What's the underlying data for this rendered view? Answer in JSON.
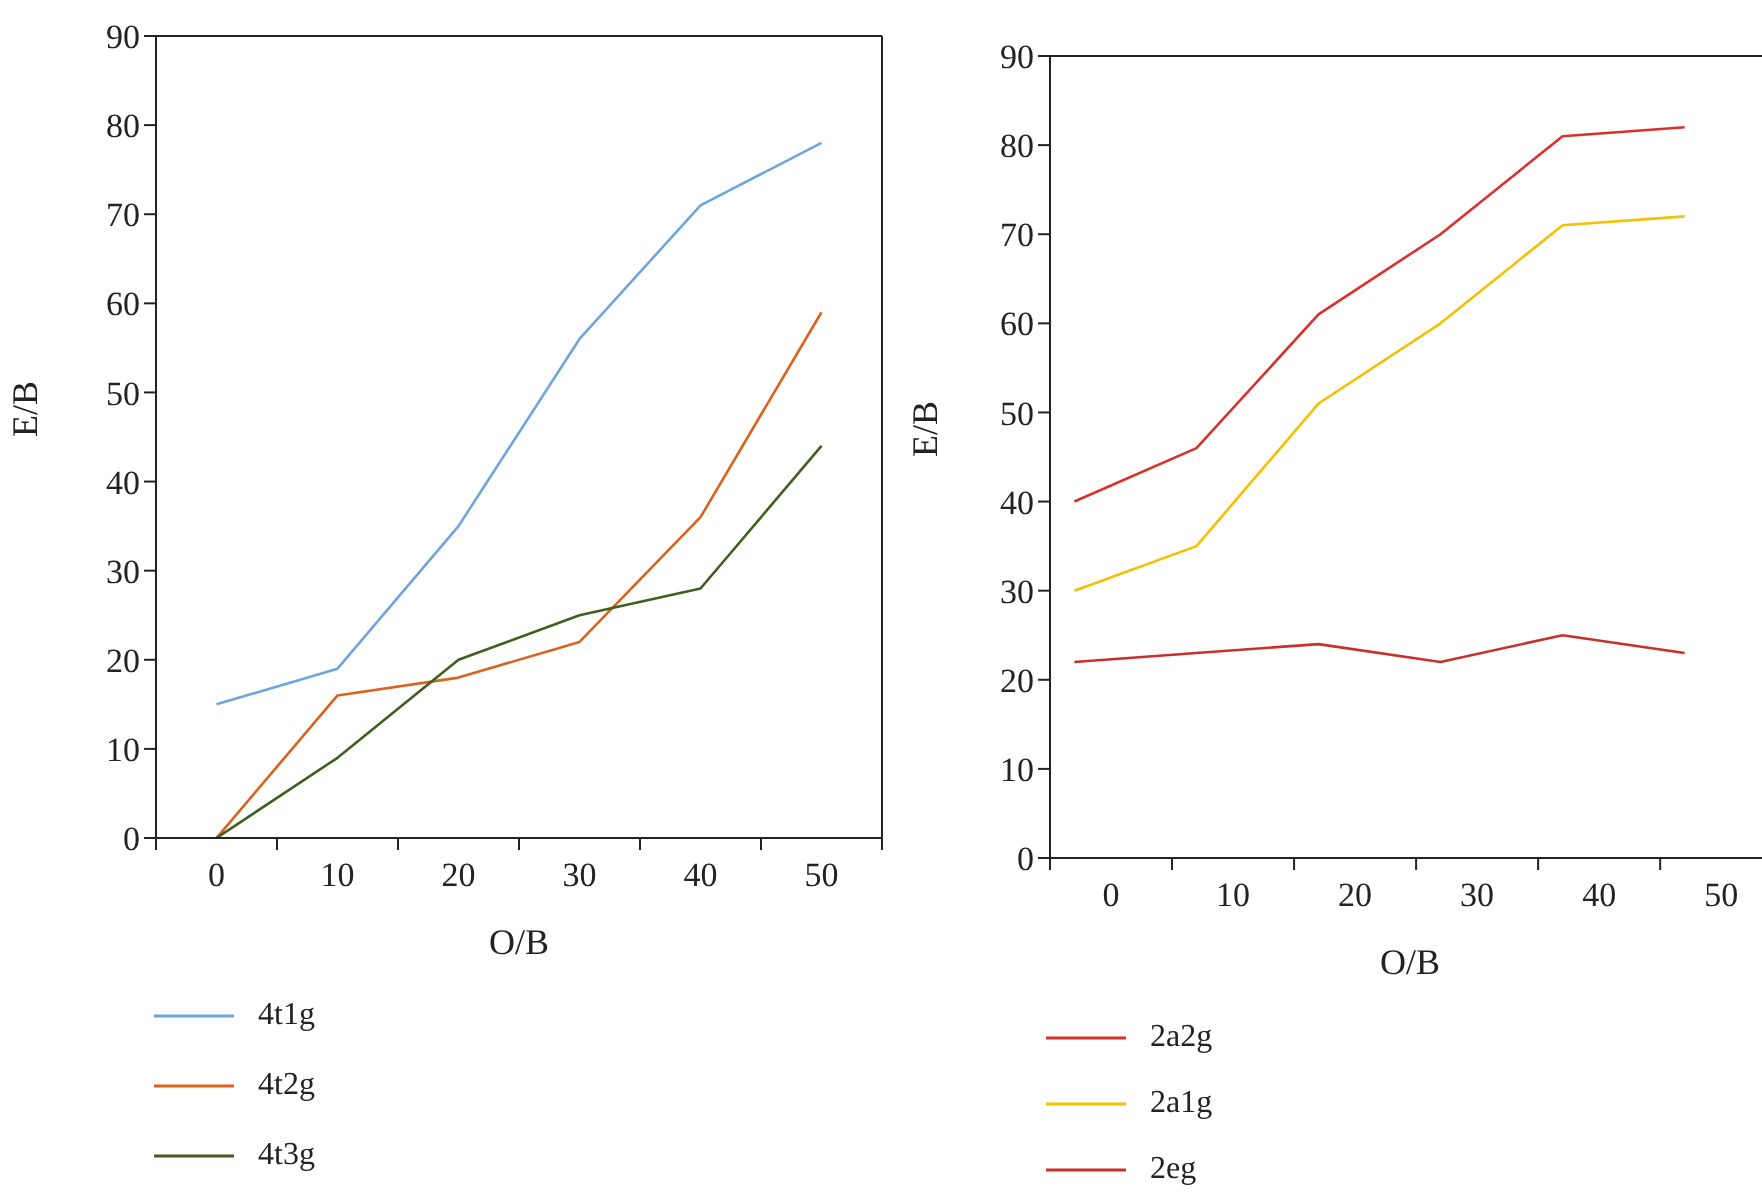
{
  "chart_data": [
    {
      "type": "line",
      "xlabel": "O/B",
      "ylabel": "E/B",
      "x": [
        0,
        10,
        20,
        30,
        40,
        50
      ],
      "series": [
        {
          "name": "4t1g",
          "color": "#6fa5dc",
          "values": [
            15,
            19,
            35,
            56,
            71,
            78
          ]
        },
        {
          "name": "4t2g",
          "color": "#d9621f",
          "values": [
            0,
            16,
            18,
            22,
            36,
            59
          ]
        },
        {
          "name": "4t3g",
          "color": "#3f5f1f",
          "values": [
            0,
            9,
            20,
            25,
            28,
            44
          ]
        }
      ],
      "xlim": [
        -5,
        55
      ],
      "xticks": [
        {
          "value": -5,
          "label": null
        },
        0,
        {
          "value": 5,
          "label": null
        },
        10,
        {
          "value": 15,
          "label": null
        },
        20,
        {
          "value": 25,
          "label": null
        },
        30,
        {
          "value": 35,
          "label": null
        },
        40,
        {
          "value": 45,
          "label": null
        },
        50,
        {
          "value": 55,
          "label": null
        }
      ],
      "ylim": [
        0,
        90
      ],
      "yticks": [
        0,
        10,
        20,
        30,
        40,
        50,
        60,
        70,
        80,
        90
      ],
      "grid": false,
      "legend": "bottom",
      "marker": "none",
      "line_style": "solid"
    },
    {
      "type": "line",
      "xlabel": "O/B",
      "ylabel": "E/B",
      "x": [
        -3,
        7,
        17,
        27,
        37,
        47
      ],
      "series": [
        {
          "name": "2a2g",
          "color": "#d9302a",
          "values": [
            40,
            46,
            61,
            70,
            81,
            82
          ]
        },
        {
          "name": "2a1g",
          "color": "#f5c000",
          "values": [
            30,
            35,
            51,
            60,
            71,
            72
          ]
        },
        {
          "name": "2eg",
          "color": "#c8302c",
          "values": [
            22,
            23,
            24,
            22,
            25,
            23
          ]
        }
      ],
      "xlim": [
        -5,
        54
      ],
      "xticks": [
        {
          "value": -5,
          "label": null
        },
        0,
        {
          "value": 5,
          "label": null
        },
        10,
        {
          "value": 15,
          "label": null
        },
        20,
        {
          "value": 25,
          "label": null
        },
        30,
        {
          "value": 35,
          "label": null
        },
        40,
        {
          "value": 45,
          "label": null
        },
        50
      ],
      "ylim": [
        0,
        90
      ],
      "yticks": [
        0,
        10,
        20,
        30,
        40,
        50,
        60,
        70,
        80,
        90
      ],
      "grid": false,
      "legend": "bottom",
      "marker": "none",
      "line_style": "solid"
    }
  ]
}
